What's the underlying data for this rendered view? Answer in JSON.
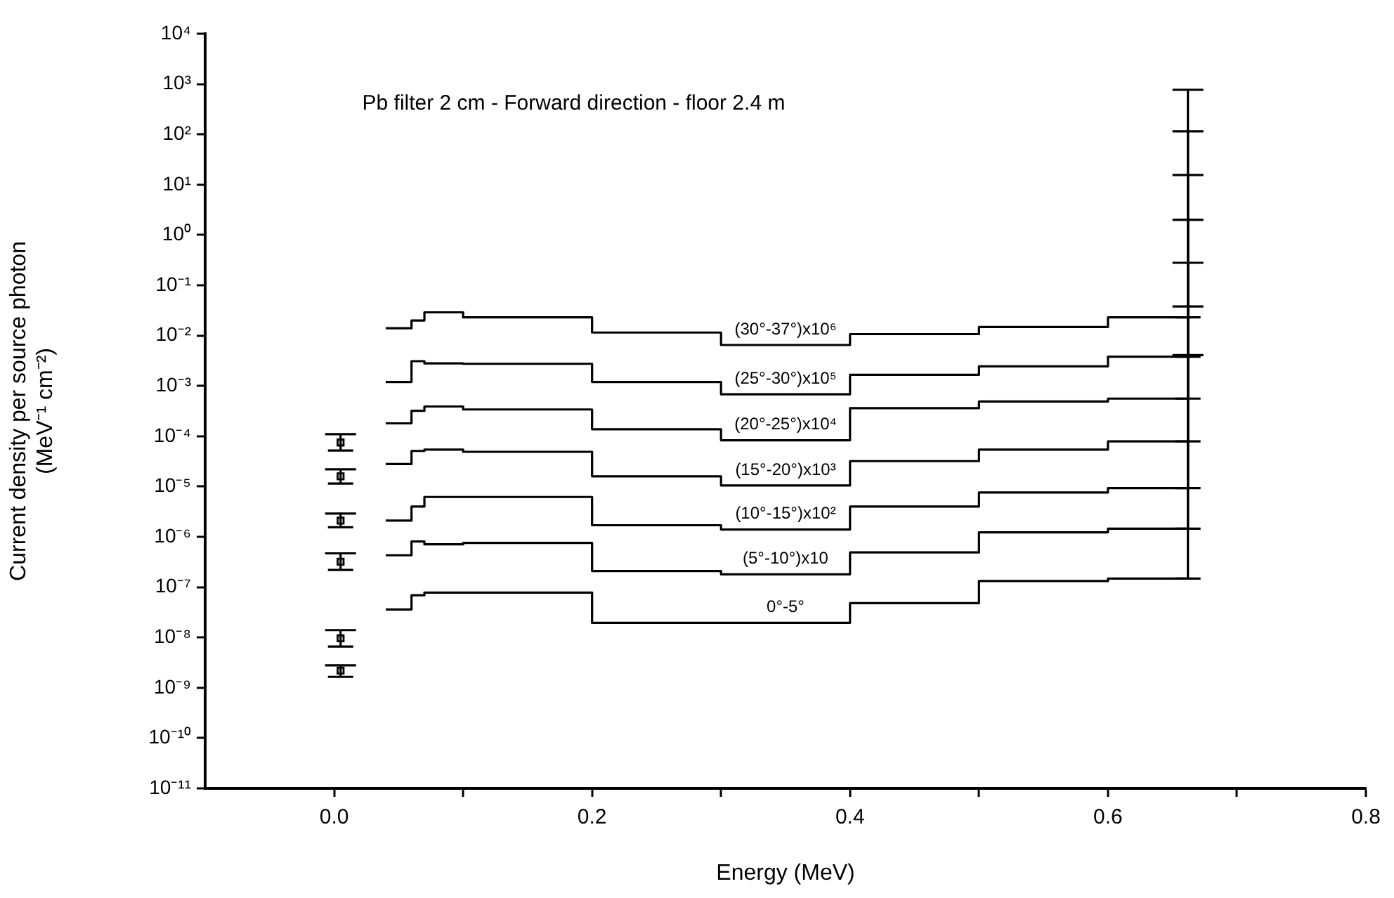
{
  "chart_data": {
    "type": "step",
    "xlabel": "Energy (MeV)",
    "ylabel": "Current density per source photon\n(MeV⁻¹ cm⁻²)",
    "annotations": [
      "Pb filter 2 cm - Forward direction - floor 2.4 m"
    ],
    "log": "y",
    "grid": false,
    "legend": false,
    "marker": "none",
    "xlim": [
      -0.1,
      0.8
    ],
    "xticks": [
      {
        "value": 0,
        "label": "0.0"
      },
      {
        "value": 0.1,
        "label": null
      },
      0.2,
      {
        "value": 0.3,
        "label": null
      },
      0.4,
      {
        "value": 0.5,
        "label": null
      },
      0.6,
      {
        "value": 0.7,
        "label": null
      },
      0.8
    ],
    "ylim": [
      1e-11,
      10000.0
    ],
    "yticks": [
      {
        "value": 1e-11,
        "label": "10⁻¹¹"
      },
      {
        "value": 1e-10,
        "label": "10⁻¹⁰"
      },
      {
        "value": 1e-09,
        "label": "10⁻⁹"
      },
      {
        "value": 1e-08,
        "label": "10⁻⁸"
      },
      {
        "value": 1e-07,
        "label": "10⁻⁷"
      },
      {
        "value": 1e-06,
        "label": "10⁻⁶"
      },
      {
        "value": 1e-05,
        "label": "10⁻⁵"
      },
      {
        "value": 0.0001,
        "label": "10⁻⁴"
      },
      {
        "value": 0.001,
        "label": "10⁻³"
      },
      {
        "value": 0.01,
        "label": "10⁻²"
      },
      {
        "value": 0.1,
        "label": "10⁻¹"
      },
      {
        "value": 1,
        "label": "10⁰"
      },
      {
        "value": 10,
        "label": "10¹"
      },
      {
        "value": 100,
        "label": "10²"
      },
      {
        "value": 1000,
        "label": "10³"
      },
      {
        "value": 10000,
        "label": "10⁴"
      }
    ],
    "series": [
      {
        "name": "(30°-37°)x10⁶",
        "color": "#000000",
        "x": [
          0.04,
          0.06,
          0.07,
          0.1,
          0.2,
          0.3,
          0.4,
          0.5,
          0.6,
          0.662
        ],
        "values": [
          0.014,
          0.02,
          0.029,
          0.023,
          0.0115,
          0.0065,
          0.0107,
          0.0148,
          0.023,
          0.023
        ],
        "errors": [
          null,
          null,
          null,
          null,
          null,
          null,
          null,
          null,
          null,
          [
            0.023,
            770
          ]
        ]
      },
      {
        "name": "(25°-30°)x10⁵",
        "color": "#000000",
        "x": [
          0.04,
          0.06,
          0.07,
          0.1,
          0.2,
          0.3,
          0.4,
          0.5,
          0.6,
          0.662
        ],
        "values": [
          0.0012,
          0.0031,
          0.0028,
          0.00275,
          0.0012,
          0.00068,
          0.00166,
          0.00245,
          0.0038,
          0.0038
        ],
        "errors": [
          null,
          null,
          null,
          null,
          null,
          null,
          null,
          null,
          null,
          [
            0.0038,
            115
          ]
        ]
      },
      {
        "name": "(20°-25°)x10⁴",
        "color": "#000000",
        "x": [
          0.04,
          0.06,
          0.07,
          0.1,
          0.2,
          0.3,
          0.4,
          0.5,
          0.6,
          0.662
        ],
        "values": [
          0.00018,
          0.00032,
          0.00039,
          0.00034,
          0.000138,
          8.3e-05,
          0.00036,
          0.00049,
          0.00056,
          0.00056
        ],
        "errors": [
          null,
          null,
          null,
          null,
          null,
          null,
          null,
          null,
          null,
          [
            0.00056,
            15.5
          ]
        ]
      },
      {
        "name": "(15°-20°)x10³",
        "color": "#000000",
        "x": [
          0.04,
          0.06,
          0.07,
          0.1,
          0.2,
          0.3,
          0.4,
          0.5,
          0.6,
          0.662
        ],
        "values": [
          2.8e-05,
          5.1e-05,
          5.4e-05,
          4.9e-05,
          1.6e-05,
          1.05e-05,
          3.2e-05,
          5.4e-05,
          7.9e-05,
          7.9e-05
        ],
        "errors": [
          null,
          null,
          null,
          null,
          null,
          null,
          null,
          null,
          null,
          [
            7.9e-05,
            2.0
          ]
        ]
      },
      {
        "name": "(10°-15°)x10²",
        "color": "#000000",
        "x": [
          0.04,
          0.06,
          0.07,
          0.1,
          0.2,
          0.3,
          0.4,
          0.5,
          0.6,
          0.662
        ],
        "values": [
          2.1e-06,
          4e-06,
          6.2e-06,
          6.2e-06,
          1.7e-06,
          1.4e-06,
          4e-06,
          7.6e-06,
          9.3e-06,
          9.3e-06
        ],
        "errors": [
          null,
          null,
          null,
          null,
          null,
          null,
          null,
          null,
          null,
          [
            9.3e-06,
            0.28
          ]
        ]
      },
      {
        "name": "(5°-10°)x10",
        "color": "#000000",
        "x": [
          0.04,
          0.06,
          0.07,
          0.1,
          0.2,
          0.3,
          0.4,
          0.5,
          0.6,
          0.662
        ],
        "values": [
          4.3e-07,
          8.1e-07,
          7.1e-07,
          7.6e-07,
          2.1e-07,
          1.8e-07,
          4.9e-07,
          1.23e-06,
          1.45e-06,
          1.45e-06
        ],
        "errors": [
          null,
          null,
          null,
          null,
          null,
          null,
          null,
          null,
          null,
          [
            1.45e-06,
            0.038
          ]
        ]
      },
      {
        "name": "0°-5°",
        "color": "#000000",
        "x": [
          0.04,
          0.06,
          0.07,
          0.1,
          0.2,
          0.3,
          0.4,
          0.5,
          0.6,
          0.662
        ],
        "values": [
          3.6e-08,
          6.9e-08,
          7.8e-08,
          7.8e-08,
          1.95e-08,
          1.95e-08,
          4.8e-08,
          1.32e-07,
          1.48e-07,
          1.48e-07
        ],
        "errors": [
          null,
          null,
          null,
          null,
          null,
          null,
          null,
          null,
          null,
          [
            1.48e-07,
            0.0041
          ]
        ]
      },
      {
        "type": "scatter",
        "marker": "square",
        "color": "#000000",
        "x": [
          0.005,
          0.005,
          0.005,
          0.005,
          0.005,
          0.005
        ],
        "values": [
          7.5e-05,
          1.6e-05,
          2.1e-06,
          3.2e-07,
          9.6e-09,
          2.2e-09
        ],
        "errors": [
          [
            5.2e-05,
            0.00011
          ],
          [
            1.15e-05,
            2.2e-05
          ],
          [
            1.55e-06,
            2.9e-06
          ],
          [
            2.2e-07,
            4.7e-07
          ],
          [
            6.6e-09,
            1.4e-08
          ],
          [
            1.65e-09,
            2.8e-09
          ]
        ]
      }
    ]
  }
}
